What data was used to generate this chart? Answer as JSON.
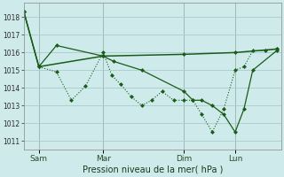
{
  "background_color": "#ceeaea",
  "grid_color": "#aacccc",
  "line_color": "#1a5c1a",
  "ylabel_ticks": [
    1011,
    1012,
    1013,
    1014,
    1015,
    1016,
    1017,
    1018
  ],
  "ylim": [
    1010.5,
    1018.8
  ],
  "xlabel": "Pression niveau de la mer( hPa )",
  "xtick_labels": [
    "Sam",
    "Mar",
    "Dim",
    "Lun"
  ],
  "xtick_positions": [
    35,
    108,
    200,
    258
  ],
  "figsize": [
    3.2,
    2.0
  ],
  "dpi": 100,
  "series1_x": [
    18,
    35,
    55,
    72,
    88,
    108,
    118,
    128,
    140,
    152,
    163,
    175,
    188,
    200,
    210,
    220,
    232,
    245,
    258,
    268,
    278,
    292,
    305
  ],
  "series1_y": [
    1018.3,
    1015.2,
    1014.9,
    1013.3,
    1014.1,
    1016.0,
    1014.7,
    1014.2,
    1013.5,
    1013.0,
    1013.3,
    1013.8,
    1013.3,
    1013.3,
    1013.3,
    1012.5,
    1011.5,
    1012.8,
    1015.0,
    1015.2,
    1016.1,
    1016.1,
    1016.2
  ],
  "series2_x": [
    18,
    35,
    108,
    200,
    258,
    305
  ],
  "series2_y": [
    1018.3,
    1015.2,
    1015.8,
    1015.9,
    1016.0,
    1016.2
  ],
  "series3_x": [
    18,
    35,
    55,
    108,
    120,
    152,
    200,
    210,
    220,
    232,
    245,
    258,
    268,
    278,
    305
  ],
  "series3_y": [
    1018.3,
    1015.2,
    1016.4,
    1015.8,
    1015.5,
    1015.0,
    1013.8,
    1013.3,
    1013.3,
    1013.0,
    1012.5,
    1011.5,
    1012.8,
    1015.0,
    1016.1
  ]
}
